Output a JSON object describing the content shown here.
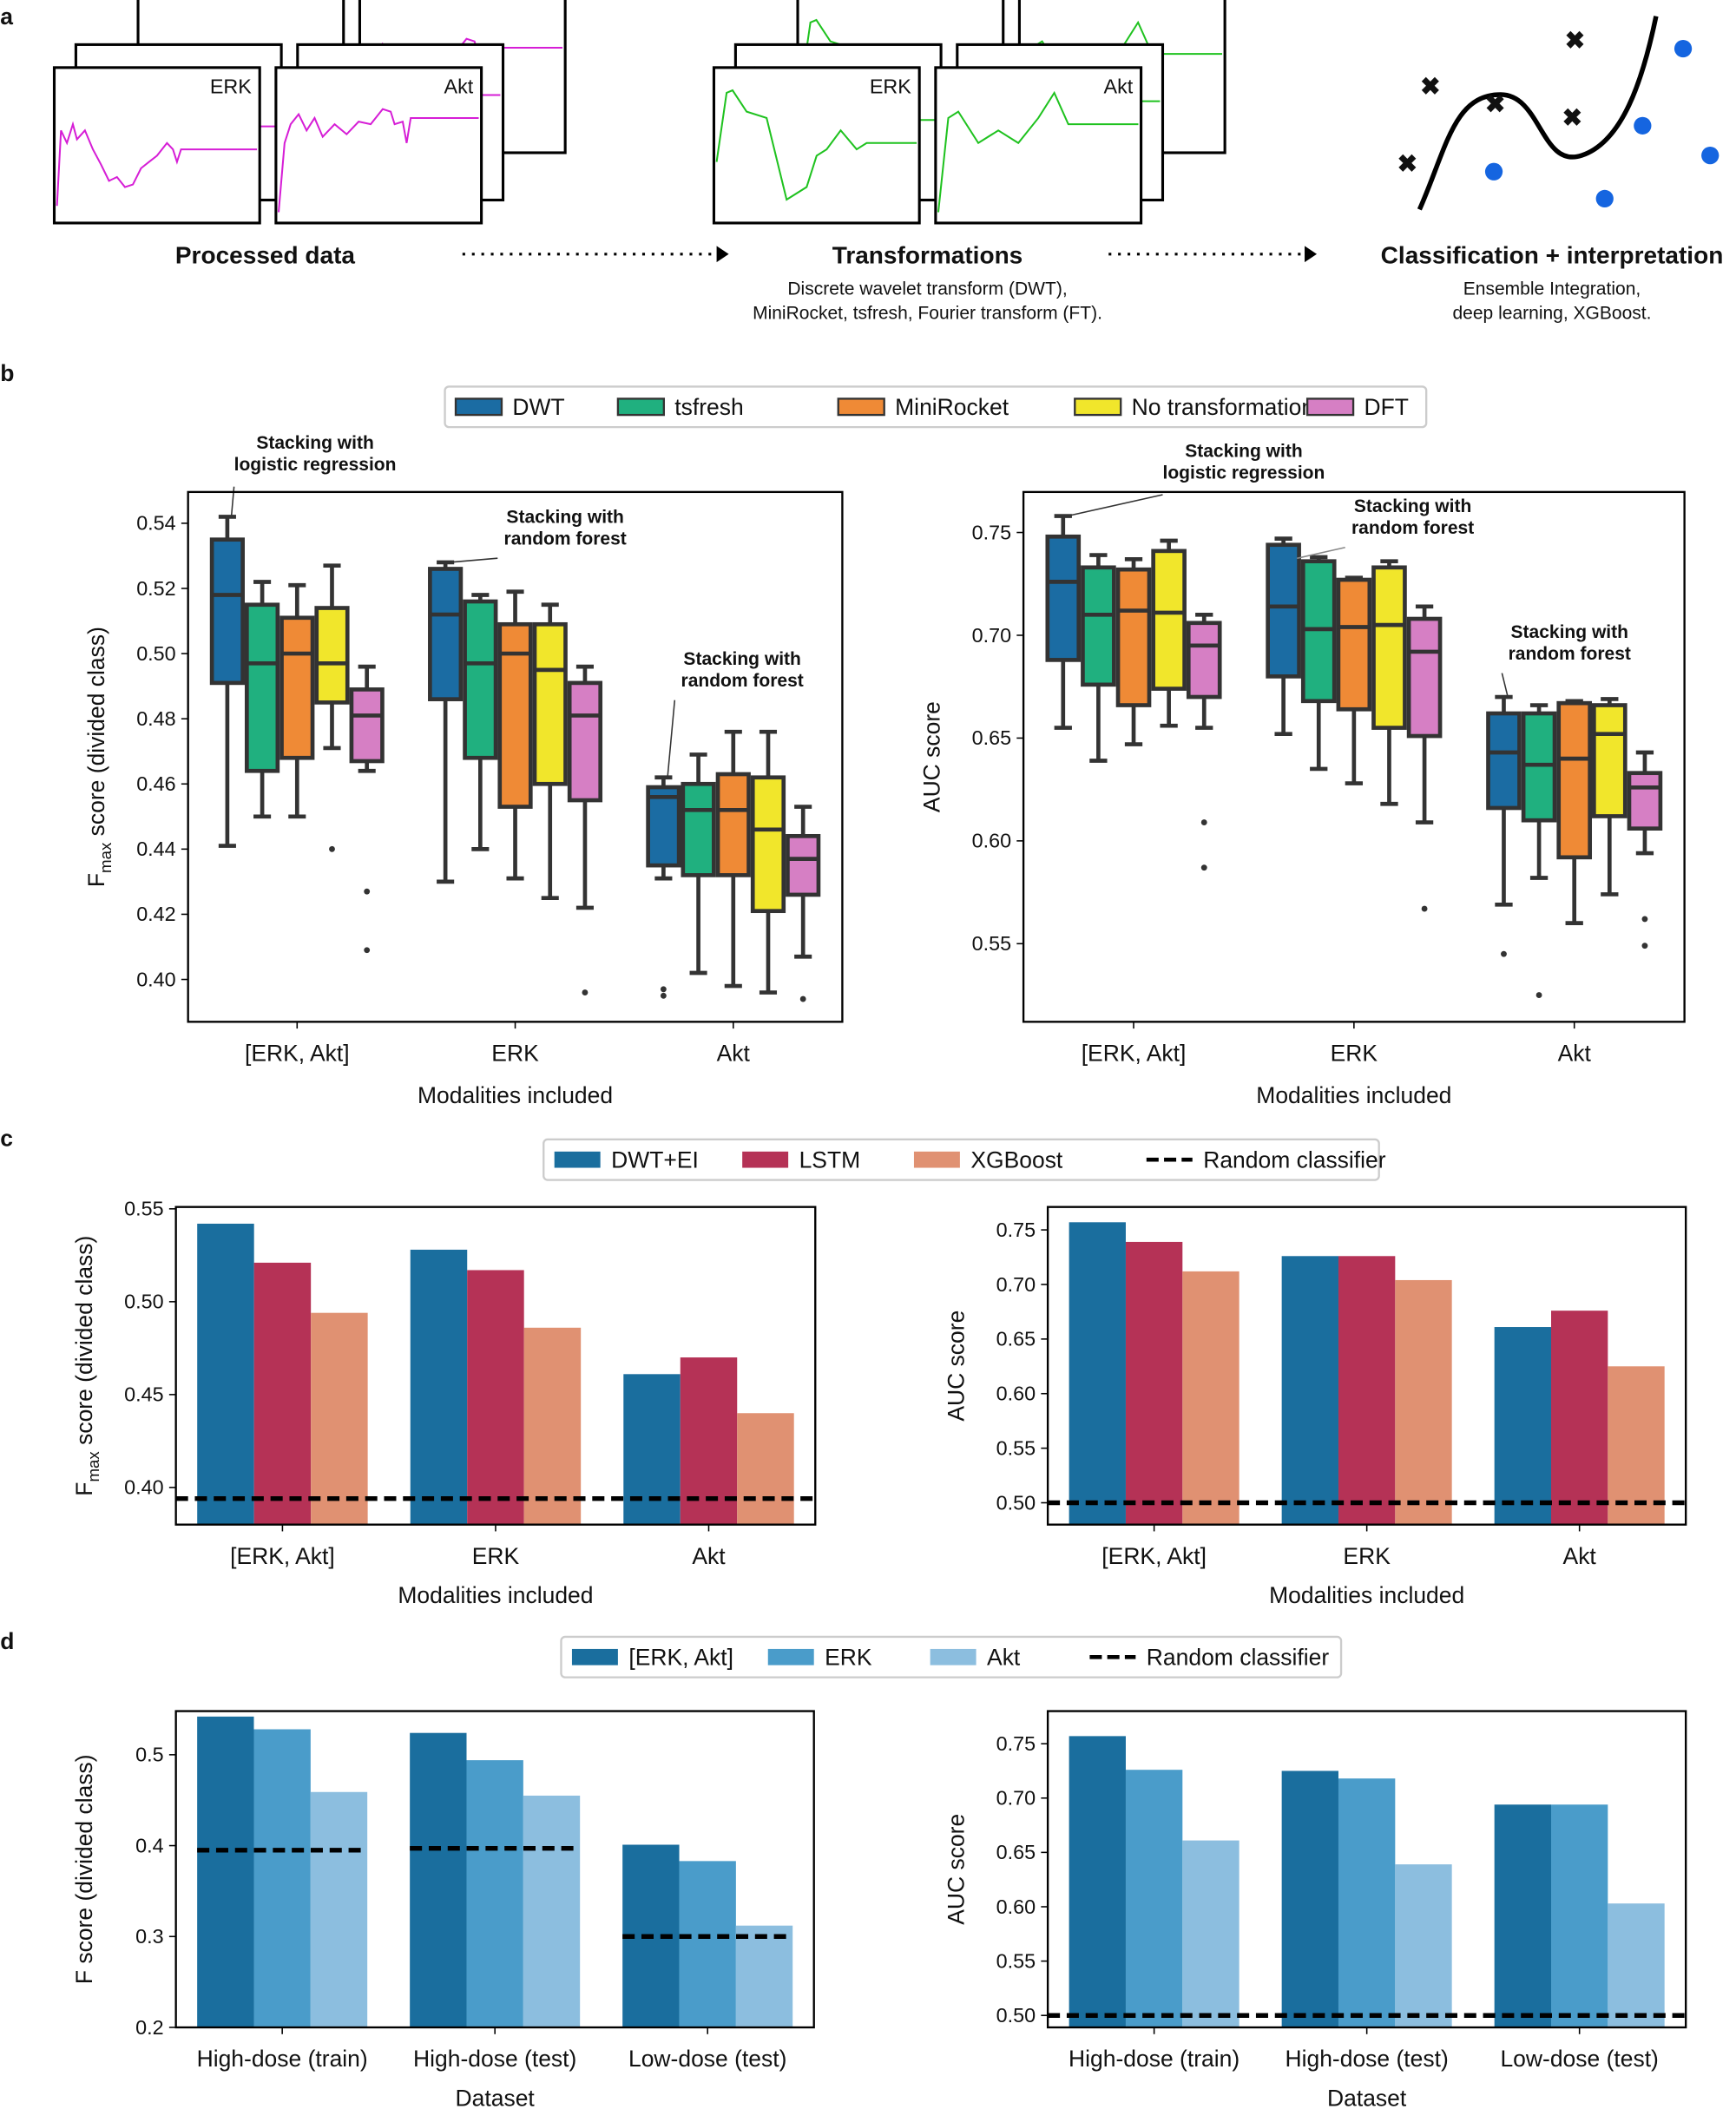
{
  "panel_labels": {
    "a": "a",
    "b": "b",
    "c": "c",
    "d": "d"
  },
  "panel_a": {
    "signal_labels": {
      "erk": "ERK",
      "akt": "Akt"
    },
    "steps": [
      {
        "title": "Processed data",
        "subtitle_lines": []
      },
      {
        "title": "Transformations",
        "subtitle_lines": [
          "Discrete wavelet transform (DWT),",
          "MiniRocket, tsfresh, Fourier transform (FT)."
        ]
      },
      {
        "title": "Classification + interpretation",
        "subtitle_lines": [
          "Ensemble Integration,",
          "deep learning, XGBoost."
        ]
      }
    ],
    "colors": {
      "raw": "#d61ed6",
      "transformed": "#1fc21f",
      "class_x": "#e0260f",
      "class_dot": "#1565e0"
    }
  },
  "legends": {
    "b": [
      {
        "label": "DWT",
        "color": "#1b6ca3"
      },
      {
        "label": "tsfresh",
        "color": "#20b07f"
      },
      {
        "label": "MiniRocket",
        "color": "#ef8a36"
      },
      {
        "label": "No transformation",
        "color": "#f1e62b"
      },
      {
        "label": "DFT",
        "color": "#d67fc4"
      }
    ],
    "c": [
      {
        "label": "DWT+EI",
        "color": "#1a6e9e",
        "kind": "patch"
      },
      {
        "label": "LSTM",
        "color": "#b53256",
        "kind": "patch"
      },
      {
        "label": "XGBoost",
        "color": "#e09172",
        "kind": "patch"
      },
      {
        "label": "Random classifier",
        "color": "#000000",
        "kind": "dash"
      }
    ],
    "d": [
      {
        "label": "[ERK, Akt]",
        "color": "#1a6e9e",
        "kind": "patch"
      },
      {
        "label": "ERK",
        "color": "#4a9cca",
        "kind": "patch"
      },
      {
        "label": "Akt",
        "color": "#8cbedf",
        "kind": "patch"
      },
      {
        "label": "Random classifier",
        "color": "#000000",
        "kind": "dash"
      }
    ]
  },
  "chart_data": [
    {
      "id": "b_left",
      "type": "box",
      "xlabel": "Modalities included",
      "ylabel": {
        "main": "F",
        "sub": "max",
        "rest": " score (divided class)"
      },
      "ylim": [
        0.387,
        0.5496
      ],
      "yticks": [
        "0.40",
        "0.42",
        "0.44",
        "0.46",
        "0.48",
        "0.50",
        "0.52",
        "0.54"
      ],
      "categories": [
        "[ERK, Akt]",
        "ERK",
        "Akt"
      ],
      "series_order": [
        "DWT",
        "tsfresh",
        "MiniRocket",
        "No transformation",
        "DFT"
      ],
      "boxes": [
        [
          {
            "low": 0.441,
            "q1": 0.491,
            "med": 0.518,
            "q3": 0.535,
            "high": 0.542,
            "out": []
          },
          {
            "low": 0.45,
            "q1": 0.464,
            "med": 0.497,
            "q3": 0.515,
            "high": 0.522,
            "out": []
          },
          {
            "low": 0.45,
            "q1": 0.468,
            "med": 0.5,
            "q3": 0.511,
            "high": 0.521,
            "out": []
          },
          {
            "low": 0.471,
            "q1": 0.485,
            "med": 0.497,
            "q3": 0.514,
            "high": 0.527,
            "out": [
              0.44
            ]
          },
          {
            "low": 0.464,
            "q1": 0.467,
            "med": 0.481,
            "q3": 0.489,
            "high": 0.496,
            "out": [
              0.427,
              0.409
            ]
          }
        ],
        [
          {
            "low": 0.43,
            "q1": 0.486,
            "med": 0.512,
            "q3": 0.526,
            "high": 0.528,
            "out": []
          },
          {
            "low": 0.44,
            "q1": 0.468,
            "med": 0.497,
            "q3": 0.516,
            "high": 0.518,
            "out": []
          },
          {
            "low": 0.431,
            "q1": 0.453,
            "med": 0.5,
            "q3": 0.509,
            "high": 0.519,
            "out": []
          },
          {
            "low": 0.425,
            "q1": 0.46,
            "med": 0.495,
            "q3": 0.509,
            "high": 0.515,
            "out": []
          },
          {
            "low": 0.422,
            "q1": 0.455,
            "med": 0.481,
            "q3": 0.491,
            "high": 0.496,
            "out": [
              0.396
            ]
          }
        ],
        [
          {
            "low": 0.431,
            "q1": 0.435,
            "med": 0.456,
            "q3": 0.459,
            "high": 0.462,
            "out": [
              0.397,
              0.395
            ]
          },
          {
            "low": 0.402,
            "q1": 0.432,
            "med": 0.452,
            "q3": 0.46,
            "high": 0.469,
            "out": []
          },
          {
            "low": 0.398,
            "q1": 0.432,
            "med": 0.452,
            "q3": 0.463,
            "high": 0.476,
            "out": []
          },
          {
            "low": 0.396,
            "q1": 0.421,
            "med": 0.446,
            "q3": 0.462,
            "high": 0.476,
            "out": []
          },
          {
            "low": 0.407,
            "q1": 0.426,
            "med": 0.437,
            "q3": 0.444,
            "high": 0.453,
            "out": [
              0.394
            ]
          }
        ]
      ],
      "annotations": [
        {
          "lines": [
            "Stacking with",
            "logistic regression"
          ],
          "category": 0,
          "series": 0
        },
        {
          "lines": [
            "Stacking with",
            "random forest"
          ],
          "category": 1,
          "series": 0
        },
        {
          "lines": [
            "Stacking with",
            "random forest"
          ],
          "category": 2,
          "series": 0
        }
      ]
    },
    {
      "id": "b_right",
      "type": "box",
      "xlabel": "Modalities included",
      "ylabel": {
        "main": "AUC score",
        "sub": "",
        "rest": ""
      },
      "ylim": [
        0.512,
        0.7697
      ],
      "yticks": [
        "0.55",
        "0.60",
        "0.65",
        "0.70",
        "0.75"
      ],
      "categories": [
        "[ERK, Akt]",
        "ERK",
        "Akt"
      ],
      "series_order": [
        "DWT",
        "tsfresh",
        "MiniRocket",
        "No transformation",
        "DFT"
      ],
      "boxes": [
        [
          {
            "low": 0.655,
            "q1": 0.688,
            "med": 0.726,
            "q3": 0.748,
            "high": 0.758,
            "out": []
          },
          {
            "low": 0.639,
            "q1": 0.676,
            "med": 0.71,
            "q3": 0.733,
            "high": 0.739,
            "out": []
          },
          {
            "low": 0.647,
            "q1": 0.666,
            "med": 0.712,
            "q3": 0.732,
            "high": 0.737,
            "out": []
          },
          {
            "low": 0.656,
            "q1": 0.674,
            "med": 0.711,
            "q3": 0.741,
            "high": 0.746,
            "out": []
          },
          {
            "low": 0.655,
            "q1": 0.67,
            "med": 0.695,
            "q3": 0.706,
            "high": 0.71,
            "out": [
              0.609,
              0.587
            ]
          }
        ],
        [
          {
            "low": 0.652,
            "q1": 0.68,
            "med": 0.714,
            "q3": 0.744,
            "high": 0.747,
            "out": []
          },
          {
            "low": 0.635,
            "q1": 0.668,
            "med": 0.703,
            "q3": 0.736,
            "high": 0.738,
            "out": []
          },
          {
            "low": 0.628,
            "q1": 0.664,
            "med": 0.704,
            "q3": 0.727,
            "high": 0.728,
            "out": []
          },
          {
            "low": 0.618,
            "q1": 0.655,
            "med": 0.705,
            "q3": 0.733,
            "high": 0.736,
            "out": []
          },
          {
            "low": 0.609,
            "q1": 0.651,
            "med": 0.692,
            "q3": 0.708,
            "high": 0.714,
            "out": [
              0.567
            ]
          }
        ],
        [
          {
            "low": 0.569,
            "q1": 0.616,
            "med": 0.643,
            "q3": 0.662,
            "high": 0.67,
            "out": [
              0.545
            ]
          },
          {
            "low": 0.582,
            "q1": 0.61,
            "med": 0.637,
            "q3": 0.662,
            "high": 0.666,
            "out": [
              0.525
            ]
          },
          {
            "low": 0.56,
            "q1": 0.592,
            "med": 0.64,
            "q3": 0.667,
            "high": 0.668,
            "out": []
          },
          {
            "low": 0.574,
            "q1": 0.612,
            "med": 0.652,
            "q3": 0.666,
            "high": 0.669,
            "out": []
          },
          {
            "low": 0.594,
            "q1": 0.606,
            "med": 0.626,
            "q3": 0.633,
            "high": 0.643,
            "out": [
              0.562,
              0.549
            ]
          }
        ]
      ],
      "annotations": [
        {
          "lines": [
            "Stacking with",
            "logistic regression"
          ],
          "category": 0,
          "series": 0
        },
        {
          "lines": [
            "Stacking with",
            "random forest"
          ],
          "category": 1,
          "series": 0
        },
        {
          "lines": [
            "Stacking with",
            "random forest"
          ],
          "category": 2,
          "series": 0
        }
      ]
    },
    {
      "id": "c_left",
      "type": "bar",
      "xlabel": "Modalities included",
      "ylabel": {
        "main": "F",
        "sub": "max",
        "rest": " score (divided class)"
      },
      "ylim": [
        0.38,
        0.551
      ],
      "yticks": [
        "0.40",
        "0.45",
        "0.50",
        "0.55"
      ],
      "categories": [
        "[ERK, Akt]",
        "ERK",
        "Akt"
      ],
      "series": [
        {
          "name": "DWT+EI",
          "values": [
            0.542,
            0.528,
            0.461
          ]
        },
        {
          "name": "LSTM",
          "values": [
            0.521,
            0.517,
            0.47
          ]
        },
        {
          "name": "XGBoost",
          "values": [
            0.494,
            0.486,
            0.44
          ]
        }
      ],
      "random_classifier": [
        0.394,
        0.394,
        0.394
      ],
      "random_full_width": true
    },
    {
      "id": "c_right",
      "type": "bar",
      "xlabel": "Modalities included",
      "ylabel": {
        "main": "AUC score",
        "sub": "",
        "rest": ""
      },
      "ylim": [
        0.48,
        0.771
      ],
      "yticks": [
        "0.50",
        "0.55",
        "0.60",
        "0.65",
        "0.70",
        "0.75"
      ],
      "categories": [
        "[ERK, Akt]",
        "ERK",
        "Akt"
      ],
      "series": [
        {
          "name": "DWT+EI",
          "values": [
            0.757,
            0.726,
            0.661
          ]
        },
        {
          "name": "LSTM",
          "values": [
            0.739,
            0.726,
            0.676
          ]
        },
        {
          "name": "XGBoost",
          "values": [
            0.712,
            0.704,
            0.625
          ]
        }
      ],
      "random_classifier": [
        0.5,
        0.5,
        0.5
      ],
      "random_full_width": true
    },
    {
      "id": "d_left",
      "type": "bar",
      "xlabel": "Dataset",
      "ylabel": {
        "main": "F score (divided class)",
        "sub": "",
        "rest": ""
      },
      "ylim": [
        0.2,
        0.548
      ],
      "yticks": [
        "0.2",
        "0.3",
        "0.4",
        "0.5"
      ],
      "categories": [
        "High-dose (train)",
        "High-dose (test)",
        "Low-dose (test)"
      ],
      "series": [
        {
          "name": "[ERK, Akt]",
          "values": [
            0.542,
            0.524,
            0.401
          ]
        },
        {
          "name": "ERK",
          "values": [
            0.528,
            0.494,
            0.383
          ]
        },
        {
          "name": "Akt",
          "values": [
            0.459,
            0.455,
            0.312
          ]
        }
      ],
      "random_classifier": [
        0.395,
        0.397,
        0.3
      ],
      "random_full_width": false
    },
    {
      "id": "d_right",
      "type": "bar",
      "xlabel": "Dataset",
      "ylabel": {
        "main": "AUC score",
        "sub": "",
        "rest": ""
      },
      "ylim": [
        0.489,
        0.78
      ],
      "yticks": [
        "0.50",
        "0.55",
        "0.60",
        "0.65",
        "0.70",
        "0.75"
      ],
      "categories": [
        "High-dose (train)",
        "High-dose (test)",
        "Low-dose (test)"
      ],
      "series": [
        {
          "name": "[ERK, Akt]",
          "values": [
            0.757,
            0.725,
            0.694
          ]
        },
        {
          "name": "ERK",
          "values": [
            0.726,
            0.718,
            0.694
          ]
        },
        {
          "name": "Akt",
          "values": [
            0.661,
            0.639,
            0.603
          ]
        }
      ],
      "random_classifier": [
        0.5,
        0.5,
        0.5
      ],
      "random_full_width": true
    }
  ]
}
